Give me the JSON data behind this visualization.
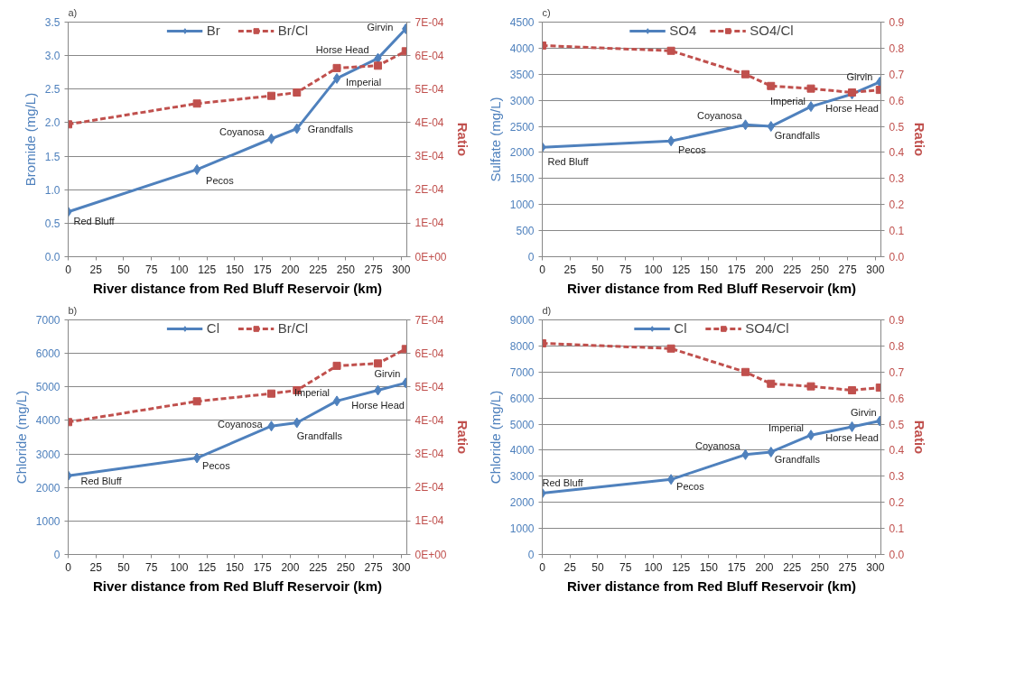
{
  "chart_data": [
    {
      "type": "line",
      "x": [
        0,
        116,
        183,
        206,
        242,
        279,
        304
      ],
      "xlim": [
        0,
        305
      ],
      "xticks": [
        0,
        25,
        50,
        75,
        100,
        125,
        150,
        175,
        200,
        225,
        250,
        275,
        300
      ],
      "ylim": [
        0,
        3.5
      ],
      "yticks": [
        {
          "value": 0,
          "label": "0.0"
        },
        0.5,
        {
          "value": 1,
          "label": "1.0"
        },
        1.5,
        {
          "value": 2,
          "label": "2.0"
        },
        2.5,
        {
          "value": 3,
          "label": "3.0"
        },
        3.5
      ],
      "y2lim": [
        0,
        0.0007
      ],
      "y2ticks": [
        {
          "value": 0,
          "label": "0E+00"
        },
        {
          "value": 0.0001,
          "label": "1E-04"
        },
        {
          "value": 0.0002,
          "label": "2E-04"
        },
        {
          "value": 0.0003,
          "label": "3E-04"
        },
        {
          "value": 0.0004,
          "label": "4E-04"
        },
        {
          "value": 0.0005,
          "label": "5E-04"
        },
        {
          "value": 0.0006,
          "label": "6E-04"
        },
        {
          "value": 0.0007,
          "label": "7E-04"
        }
      ],
      "xlabel": "River distance from Red Bluff Reservoir (km)",
      "ylabel": "Bromide (mg/L)",
      "y2label": "Ratio",
      "grid": "y",
      "legend": "top",
      "series": [
        {
          "name": "Br",
          "color": "#4f81bd",
          "marker": "diamond",
          "line_style": "solid",
          "values": [
            0.67,
            1.3,
            1.76,
            1.91,
            2.66,
            2.96,
            3.4
          ]
        },
        {
          "name": "Br/Cl",
          "color": "#c0504d",
          "marker": "square",
          "line_style": "dashed",
          "axis": "y2",
          "values": [
            0.000395,
            0.000457,
            0.00048,
            0.00049,
            0.000563,
            0.00057,
            0.000613
          ]
        }
      ],
      "annotations": [
        "a)",
        {
          "text": "Red Bluff",
          "x": 0,
          "y": 0.67
        },
        {
          "text": "Pecos",
          "x": 116,
          "y": 1.3
        },
        {
          "text": "Coyanosa",
          "x": 183,
          "y": 1.76
        },
        {
          "text": "Grandfalls",
          "x": 206,
          "y": 1.91
        },
        {
          "text": "Imperial",
          "x": 242,
          "y": 2.66
        },
        {
          "text": "Horse Head",
          "x": 279,
          "y": 2.96
        },
        {
          "text": "Girvin",
          "x": 304,
          "y": 3.4
        }
      ]
    },
    {
      "type": "line",
      "x": [
        0,
        116,
        183,
        206,
        242,
        279,
        304
      ],
      "xlim": [
        0,
        305
      ],
      "xticks": [
        0,
        25,
        50,
        75,
        100,
        125,
        150,
        175,
        200,
        225,
        250,
        275,
        300
      ],
      "ylim": [
        0,
        4500
      ],
      "yticks": [
        0,
        500,
        1000,
        1500,
        2000,
        2500,
        3000,
        3500,
        4000,
        4500
      ],
      "y2lim": [
        0,
        0.9
      ],
      "y2ticks": [
        {
          "value": 0,
          "label": "0.0"
        },
        0.1,
        0.2,
        0.3,
        0.4,
        0.5,
        0.6,
        0.7,
        0.8,
        0.9
      ],
      "xlabel": "River distance from Red Bluff Reservoir (km)",
      "ylabel": "Sulfate (mg/L)",
      "y2label": "Ratio",
      "grid": "y",
      "legend": "top",
      "series": [
        {
          "name": "SO4",
          "color": "#4f81bd",
          "marker": "diamond",
          "line_style": "solid",
          "values": [
            2100,
            2220,
            2530,
            2500,
            2880,
            3120,
            3350
          ]
        },
        {
          "name": "SO4/Cl",
          "color": "#c0504d",
          "marker": "square",
          "line_style": "dashed",
          "axis": "y2",
          "values": [
            0.81,
            0.79,
            0.7,
            0.655,
            0.645,
            0.63,
            0.64
          ]
        }
      ],
      "annotations": [
        "c)",
        {
          "text": "Red Bluff",
          "x": 0,
          "y": 2100
        },
        {
          "text": "Pecos",
          "x": 116,
          "y": 2220
        },
        {
          "text": "Coyanosa",
          "x": 183,
          "y": 2530
        },
        {
          "text": "Grandfalls",
          "x": 206,
          "y": 2500
        },
        {
          "text": "Imperial",
          "x": 242,
          "y": 2880
        },
        {
          "text": "Horse Head",
          "x": 279,
          "y": 3120
        },
        {
          "text": "Girvin",
          "x": 304,
          "y": 3350
        }
      ]
    },
    {
      "type": "line",
      "x": [
        0,
        116,
        183,
        206,
        242,
        279,
        304
      ],
      "xlim": [
        0,
        305
      ],
      "xticks": [
        0,
        25,
        50,
        75,
        100,
        125,
        150,
        175,
        200,
        225,
        250,
        275,
        300
      ],
      "ylim": [
        0,
        7000
      ],
      "yticks": [
        0,
        1000,
        2000,
        3000,
        4000,
        5000,
        6000,
        7000
      ],
      "y2lim": [
        0,
        0.0007
      ],
      "y2ticks": [
        {
          "value": 0,
          "label": "0E+00"
        },
        {
          "value": 0.0001,
          "label": "1E-04"
        },
        {
          "value": 0.0002,
          "label": "2E-04"
        },
        {
          "value": 0.0003,
          "label": "3E-04"
        },
        {
          "value": 0.0004,
          "label": "4E-04"
        },
        {
          "value": 0.0005,
          "label": "5E-04"
        },
        {
          "value": 0.0006,
          "label": "6E-04"
        },
        {
          "value": 0.0007,
          "label": "7E-04"
        }
      ],
      "xlabel": "River distance from Red Bluff Reservoir (km)",
      "ylabel": "Chloride (mg/L)",
      "y2label": "Ratio",
      "grid": "y",
      "legend": "top",
      "series": [
        {
          "name": "Cl",
          "color": "#4f81bd",
          "marker": "diamond",
          "line_style": "solid",
          "values": [
            2350,
            2880,
            3830,
            3930,
            4580,
            4900,
            5120
          ]
        },
        {
          "name": "Br/Cl",
          "color": "#c0504d",
          "marker": "square",
          "line_style": "dashed",
          "axis": "y2",
          "values": [
            0.000395,
            0.000457,
            0.00048,
            0.00049,
            0.000563,
            0.00057,
            0.000613
          ]
        }
      ],
      "annotations": [
        "b)",
        {
          "text": "Red Bluff",
          "x": 0,
          "y": 2350
        },
        {
          "text": "Pecos",
          "x": 116,
          "y": 2880
        },
        {
          "text": "Coyanosa",
          "x": 183,
          "y": 3830
        },
        {
          "text": "Grandfalls",
          "x": 206,
          "y": 3930
        },
        {
          "text": "Imperial",
          "x": 242,
          "y": 4580
        },
        {
          "text": "Horse Head",
          "x": 279,
          "y": 4900
        },
        {
          "text": "Girvin",
          "x": 304,
          "y": 5120
        }
      ]
    },
    {
      "type": "line",
      "x": [
        0,
        116,
        183,
        206,
        242,
        279,
        304
      ],
      "xlim": [
        0,
        305
      ],
      "xticks": [
        0,
        25,
        50,
        75,
        100,
        125,
        150,
        175,
        200,
        225,
        250,
        275,
        300
      ],
      "ylim": [
        0,
        9000
      ],
      "yticks": [
        0,
        1000,
        2000,
        3000,
        4000,
        5000,
        6000,
        7000,
        8000,
        9000
      ],
      "y2lim": [
        0,
        0.9
      ],
      "y2ticks": [
        {
          "value": 0,
          "label": "0.0"
        },
        0.1,
        0.2,
        0.3,
        0.4,
        0.5,
        0.6,
        0.7,
        0.8,
        0.9
      ],
      "xlabel": "River distance from Red Bluff Reservoir (km)",
      "ylabel": "Chloride (mg/L)",
      "y2label": "Ratio",
      "grid": "y",
      "legend": "top",
      "series": [
        {
          "name": "Cl",
          "color": "#4f81bd",
          "marker": "diamond",
          "line_style": "solid",
          "values": [
            2350,
            2880,
            3830,
            3930,
            4580,
            4900,
            5120
          ]
        },
        {
          "name": "SO4/Cl",
          "color": "#c0504d",
          "marker": "square",
          "line_style": "dashed",
          "axis": "y2",
          "values": [
            0.81,
            0.79,
            0.7,
            0.655,
            0.645,
            0.63,
            0.64
          ]
        }
      ],
      "annotations": [
        "d)",
        {
          "text": "Red Bluff",
          "x": 0,
          "y": 2350
        },
        {
          "text": "Pecos",
          "x": 116,
          "y": 2880
        },
        {
          "text": "Coyanosa",
          "x": 183,
          "y": 3830
        },
        {
          "text": "Grandfalls",
          "x": 206,
          "y": 3930
        },
        {
          "text": "Imperial",
          "x": 242,
          "y": 4580
        },
        {
          "text": "Horse Head",
          "x": 279,
          "y": 4900
        },
        {
          "text": "Girvin",
          "x": 304,
          "y": 5120
        }
      ]
    }
  ]
}
